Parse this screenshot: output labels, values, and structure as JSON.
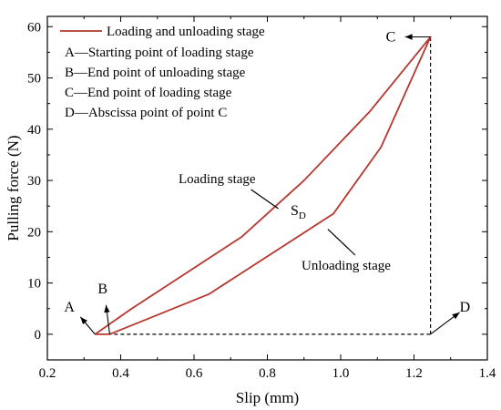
{
  "chart_data": {
    "type": "line",
    "title": "",
    "xlabel": "Slip (mm)",
    "ylabel": "Pulling force (N)",
    "xlim": [
      0.2,
      1.4
    ],
    "ylim": [
      -5,
      62
    ],
    "x_ticks": [
      0.2,
      0.4,
      0.6,
      0.8,
      1.0,
      1.2,
      1.4
    ],
    "y_ticks": [
      0,
      10,
      20,
      30,
      40,
      50,
      60
    ],
    "x_tick_labels": [
      "0.2",
      "0.4",
      "0.6",
      "0.8",
      "1.0",
      "1.2",
      "1.4"
    ],
    "y_tick_labels": [
      "0",
      "10",
      "20",
      "30",
      "40",
      "50",
      "60"
    ],
    "grid": false,
    "legend_position": "top-left",
    "series": [
      {
        "name": "Loading and unloading stage",
        "color": "#b5372e",
        "x": [
          0.33,
          0.43,
          0.58,
          0.73,
          0.9,
          1.08,
          1.245,
          1.11,
          0.98,
          0.64,
          0.37,
          0.33
        ],
        "y": [
          0,
          5,
          12,
          19,
          30,
          43.5,
          58,
          36.5,
          23.5,
          7.8,
          0,
          0
        ]
      }
    ],
    "legend_notes": [
      "A—Starting point of loading stage",
      "B—End point of unloading stage",
      "C—End point of loading stage",
      "D—Abscissa point of point C"
    ],
    "point_labels": [
      {
        "id": "A",
        "text": "A",
        "x": 0.33,
        "y": 0
      },
      {
        "id": "B",
        "text": "B",
        "x": 0.37,
        "y": 0
      },
      {
        "id": "C",
        "text": "C",
        "x": 1.245,
        "y": 58
      },
      {
        "id": "D",
        "text": "D",
        "x": 1.245,
        "y": 0
      }
    ],
    "annotations": [
      {
        "id": "loading",
        "text": "Loading stage",
        "x": 0.83,
        "y": 24.5
      },
      {
        "id": "unloading",
        "text": "Unloading stage",
        "x": 0.965,
        "y": 20.5
      }
    ],
    "sd_label": {
      "text": "S",
      "subscript": "D"
    },
    "guide_lines": [
      {
        "style": "dashed",
        "x": [
          0.33,
          1.245
        ],
        "y": [
          0,
          0
        ]
      },
      {
        "style": "dashed",
        "x": [
          1.245,
          1.245
        ],
        "y": [
          0,
          58
        ]
      }
    ]
  }
}
